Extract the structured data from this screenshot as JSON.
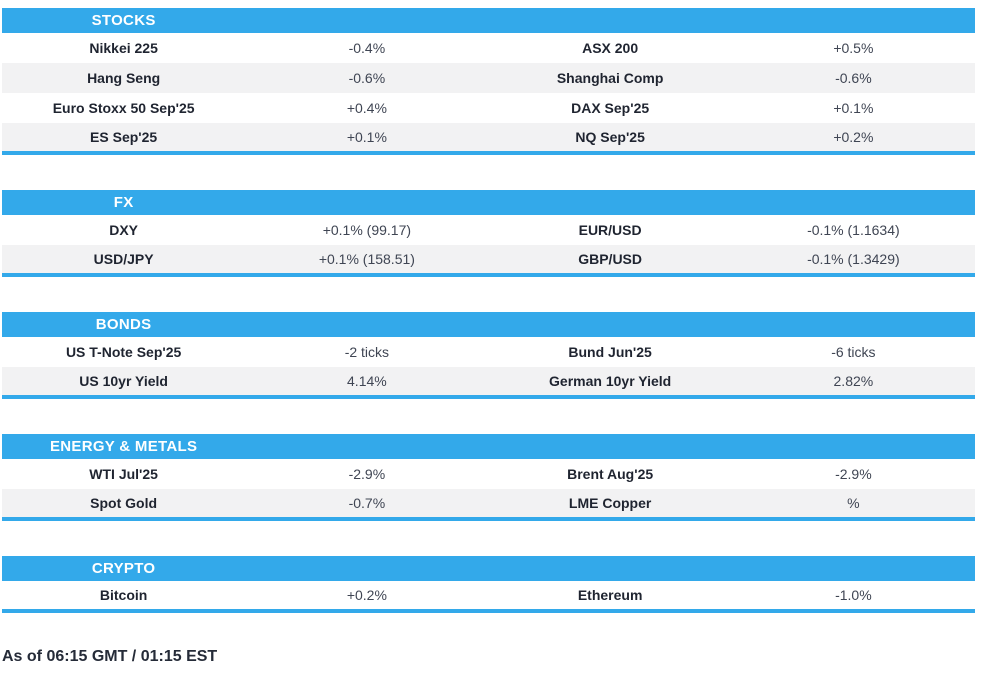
{
  "colors": {
    "accent": "#33a9ea",
    "row_alt": "#f2f2f3",
    "header_text": "#ffffff",
    "label_text": "#1f2430",
    "value_text": "#3f4553"
  },
  "sections": [
    {
      "title": "STOCKS",
      "rows": [
        {
          "l1": "Nikkei 225",
          "v1": "-0.4%",
          "l2": "ASX 200",
          "v2": "+0.5%"
        },
        {
          "l1": "Hang Seng",
          "v1": "-0.6%",
          "l2": "Shanghai Comp",
          "v2": "-0.6%"
        },
        {
          "l1": "Euro Stoxx 50 Sep'25",
          "v1": "+0.4%",
          "l2": "DAX Sep'25",
          "v2": "+0.1%"
        },
        {
          "l1": "ES Sep'25",
          "v1": "+0.1%",
          "l2": "NQ Sep'25",
          "v2": "+0.2%"
        }
      ]
    },
    {
      "title": "FX",
      "rows": [
        {
          "l1": "DXY",
          "v1": "+0.1% (99.17)",
          "l2": "EUR/USD",
          "v2": "-0.1% (1.1634)"
        },
        {
          "l1": "USD/JPY",
          "v1": "+0.1% (158.51)",
          "l2": "GBP/USD",
          "v2": "-0.1% (1.3429)"
        }
      ]
    },
    {
      "title": "BONDS",
      "rows": [
        {
          "l1": "US T-Note Sep'25",
          "v1": "-2 ticks",
          "l2": "Bund Jun'25",
          "v2": "-6 ticks"
        },
        {
          "l1": "US 10yr Yield",
          "v1": "4.14%",
          "l2": "German 10yr Yield",
          "v2": "2.82%"
        }
      ]
    },
    {
      "title": "ENERGY & METALS",
      "rows": [
        {
          "l1": "WTI Jul'25",
          "v1": "-2.9%",
          "l2": "Brent Aug'25",
          "v2": "-2.9%"
        },
        {
          "l1": "Spot Gold",
          "v1": "-0.7%",
          "l2": "LME Copper",
          "v2": "%"
        }
      ]
    },
    {
      "title": "CRYPTO",
      "rows": [
        {
          "l1": "Bitcoin",
          "v1": "+0.2%",
          "l2": "Ethereum",
          "v2": "-1.0%"
        }
      ]
    }
  ],
  "footer": {
    "as_of": "As of 06:15 GMT / 01:15 EST"
  }
}
